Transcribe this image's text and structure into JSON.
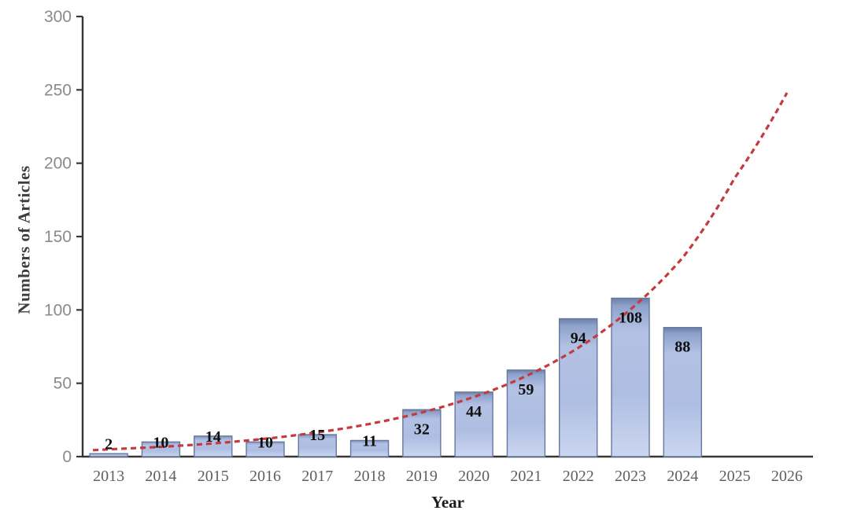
{
  "figure": {
    "background": "#ffffff"
  },
  "chart_data": {
    "type": "bar",
    "title": "",
    "xlabel": "Year",
    "ylabel": "Numbers of Articles",
    "categories": [
      "2013",
      "2014",
      "2015",
      "2016",
      "2017",
      "2018",
      "2019",
      "2020",
      "2021",
      "2022",
      "2023",
      "2024",
      "2025",
      "2026"
    ],
    "series": [
      {
        "name": "Articles",
        "type": "bar",
        "values": [
          2,
          10,
          14,
          10,
          15,
          11,
          32,
          44,
          59,
          94,
          108,
          88,
          null,
          null
        ],
        "data_labels": [
          "2",
          "10",
          "14",
          "10",
          "15",
          "11",
          "32",
          "44",
          "59",
          "94",
          "108",
          "88",
          "",
          ""
        ]
      },
      {
        "name": "Trend projection",
        "type": "line",
        "dashed": true,
        "values": [
          5,
          6.7,
          9,
          12.2,
          16.5,
          22.3,
          30.1,
          40.7,
          54.9,
          74.2,
          100.3,
          135.5,
          190,
          248
        ]
      }
    ],
    "ylim": [
      0,
      300
    ],
    "yticks": [
      0,
      50,
      100,
      150,
      200,
      250,
      300
    ],
    "grid": false,
    "legend": "none",
    "colors": {
      "bar_top": "#6a7ea8",
      "bar_upper": "#8ea2cb",
      "bar_mid": "#b2c0e3",
      "bar_lower": "#aebee2",
      "bar_bottom": "#cbd6f0",
      "bar_border": "#66789f",
      "trend_line": "#c43a3e",
      "axis": "#363636",
      "ytick_text": "#8a8a8a",
      "xtick_text": "#5f5f5f",
      "bar_label_text": "#0f0f0f",
      "ylabel_text": "#3d3d3d",
      "xlabel_text": "#1c1c1c"
    }
  }
}
